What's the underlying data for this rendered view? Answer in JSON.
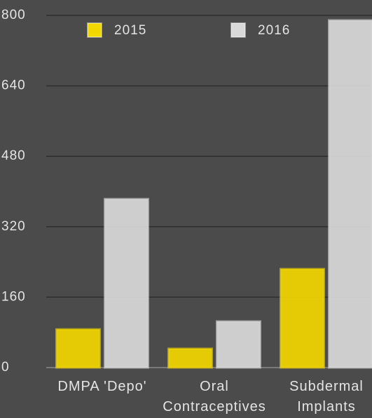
{
  "chart_data": {
    "type": "bar",
    "categories": [
      "DMPA 'Depo'",
      "Oral Contraceptives",
      "Subdermal Implants"
    ],
    "series": [
      {
        "name": "2015",
        "color": "#f2d600",
        "values": [
          87,
          43,
          224
        ]
      },
      {
        "name": "2016",
        "color": "#d9d9d9",
        "values": [
          383,
          105,
          789
        ]
      }
    ],
    "ylim": [
      0,
      800
    ],
    "yticks": [
      0,
      160,
      320,
      480,
      640,
      800
    ],
    "grid": true,
    "legend": "top-left"
  }
}
